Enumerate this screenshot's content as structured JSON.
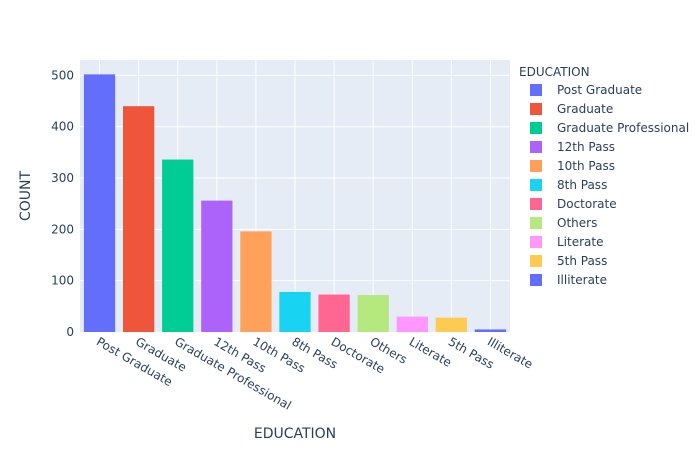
{
  "chart_data": {
    "type": "bar",
    "categories": [
      "Post Graduate",
      "Graduate",
      "Graduate Professional",
      "12th Pass",
      "10th Pass",
      "8th Pass",
      "Doctorate",
      "Others",
      "Literate",
      "5th Pass",
      "Illiterate"
    ],
    "values": [
      502,
      440,
      336,
      256,
      196,
      78,
      73,
      72,
      30,
      28,
      5
    ],
    "colors": [
      "#636efa",
      "#EF553B",
      "#00cc96",
      "#ab63fa",
      "#FFA15A",
      "#19d3f3",
      "#FF6692",
      "#B6E880",
      "#FF97FF",
      "#FECB52",
      "#636efa"
    ],
    "xlabel": "EDUCATION",
    "ylabel": "COUNT",
    "ylim": [
      0,
      530
    ],
    "yticks": [
      0,
      100,
      200,
      300,
      400,
      500
    ],
    "grid": true,
    "plot_background": "#E5ECF6",
    "legend": {
      "title": "EDUCATION",
      "placement": "right",
      "entries": [
        "Post Graduate",
        "Graduate",
        "Graduate Professional",
        "12th Pass",
        "10th Pass",
        "8th Pass",
        "Doctorate",
        "Others",
        "Literate",
        "5th Pass",
        "Illiterate"
      ]
    }
  }
}
